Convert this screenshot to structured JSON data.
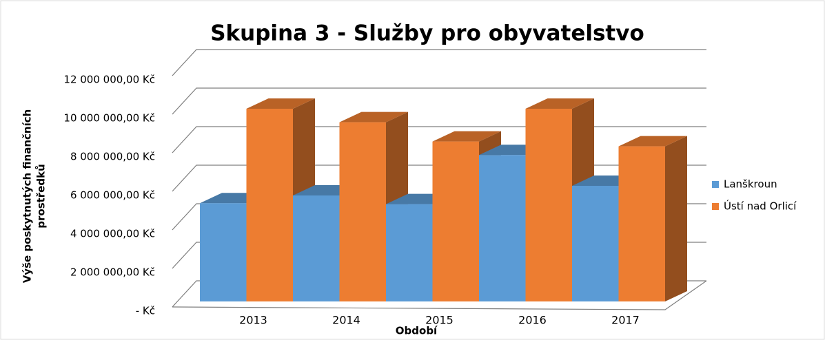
{
  "chart_data": {
    "type": "bar3d",
    "title": "Skupina 3 - Služby pro obyvatelstvo",
    "y_label": [
      "Výše poskytnutých finančních",
      "prostředků"
    ],
    "x_label": "Období",
    "categories": [
      "2013",
      "2014",
      "2015",
      "2016",
      "2017"
    ],
    "series": [
      {
        "name": "Lanškroun",
        "color": "#5b9bd5",
        "values": [
          5100000,
          5500000,
          5050000,
          7600000,
          6000000
        ]
      },
      {
        "name": "Ústí nad Orlicí",
        "color": "#ed7d31",
        "values": [
          10000000,
          9300000,
          8300000,
          10000000,
          8050000
        ]
      }
    ],
    "ylim": [
      0,
      12000000
    ],
    "yticks": [
      {
        "value": 0,
        "label": "-  Kč"
      },
      {
        "value": 2000000,
        "label": "2 000 000,00 Kč"
      },
      {
        "value": 4000000,
        "label": "4 000 000,00 Kč"
      },
      {
        "value": 6000000,
        "label": "6 000 000,00 Kč"
      },
      {
        "value": 8000000,
        "label": "8 000 000,00 Kč"
      },
      {
        "value": 10000000,
        "label": "10 000 000,00 Kč"
      },
      {
        "value": 12000000,
        "label": "12 000 000,00 Kč"
      }
    ],
    "grid": true,
    "legend": "right"
  }
}
